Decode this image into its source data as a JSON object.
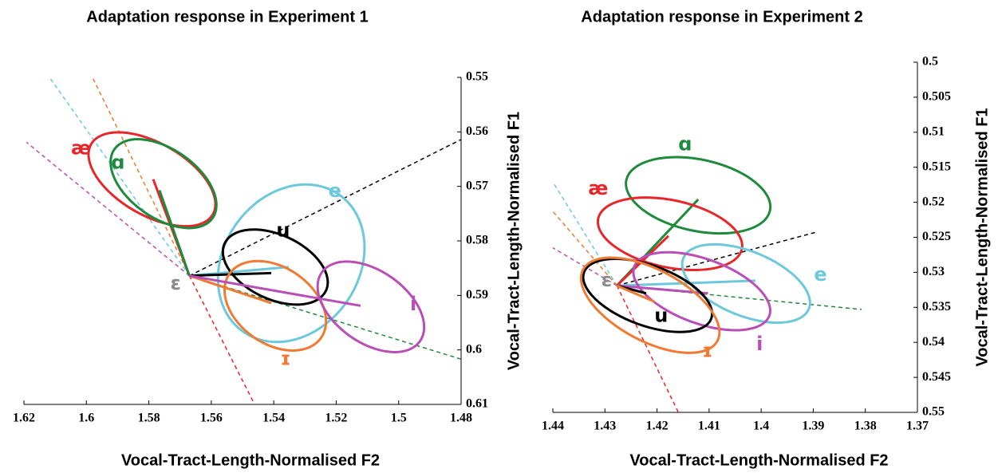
{
  "chart_data": [
    {
      "type": "ellipse",
      "title": "Adaptation response in Experiment 1",
      "x_label": "Vocal-Tract-Length-Normalised F2",
      "y_label": "Vocal-Tract-Length-Normalised F1",
      "xlim": [
        1.62,
        1.48
      ],
      "xticks": [
        1.62,
        1.6,
        1.58,
        1.56,
        1.54,
        1.52,
        1.5,
        1.48
      ],
      "ylim": [
        0.61,
        0.55
      ],
      "yticks": [
        0.55,
        0.56,
        0.57,
        0.58,
        0.59,
        0.6,
        0.61
      ],
      "origin": [
        1.567,
        0.5864
      ],
      "vowels": [
        {
          "name": "æ",
          "color": "#e8262a",
          "x": 1.6017,
          "y": 0.5631,
          "ellipse": {
            "cx": 1.579,
            "cy": 0.5687,
            "rx": 0.0225,
            "ry": 0.0066,
            "angle": 30
          },
          "vector": [
            1.5786,
            0.5687
          ],
          "dashed": [
            1.5464,
            0.6097
          ]
        },
        {
          "name": "ɑ",
          "color": "#1e8a3c",
          "x": 1.5899,
          "y": 0.5657,
          "ellipse": {
            "cx": 1.5753,
            "cy": 0.5695,
            "rx": 0.0192,
            "ry": 0.0063,
            "angle": 35
          },
          "vector": [
            1.5766,
            0.5707
          ],
          "dashed": [
            1.48,
            0.6017
          ]
        },
        {
          "name": "e",
          "color": "#6cc9dc",
          "x": 1.5204,
          "y": 0.5709,
          "ellipse": {
            "cx": 1.5344,
            "cy": 0.5841,
            "rx": 0.0268,
            "ry": 0.0124,
            "angle": -55
          },
          "vector": [
            1.5352,
            0.5848
          ],
          "dashed": [
            1.6118,
            0.55
          ]
        },
        {
          "name": "u",
          "color": "#000000",
          "x": 1.537,
          "y": 0.5782,
          "ellipse": {
            "cx": 1.5395,
            "cy": 0.5848,
            "rx": 0.0179,
            "ry": 0.0059,
            "angle": 25
          },
          "vector": [
            1.5408,
            0.5859
          ],
          "dashed": [
            1.48,
            0.5614
          ]
        },
        {
          "name": "ɪ",
          "color": "#f07a32",
          "x": 1.5362,
          "y": 0.6017,
          "ellipse": {
            "cx": 1.5395,
            "cy": 0.5919,
            "rx": 0.0179,
            "ry": 0.007,
            "angle": 35
          },
          "vector": [
            1.5408,
            0.5914
          ],
          "dashed": [
            1.5983,
            0.5497
          ]
        },
        {
          "name": "i",
          "color": "#b94fb6",
          "x": 1.4953,
          "y": 0.5917,
          "ellipse": {
            "cx": 1.5089,
            "cy": 0.5921,
            "rx": 0.0192,
            "ry": 0.0066,
            "angle": 35
          },
          "vector": [
            1.5122,
            0.5919
          ],
          "dashed": [
            1.6192,
            0.5619
          ]
        },
        {
          "name": "ɛ",
          "color": "#8a8a8a",
          "x": 1.5714,
          "y": 0.5879
        }
      ]
    },
    {
      "type": "ellipse",
      "title": "Adaptation response in Experiment 2",
      "x_label": "Vocal-Tract-Length-Normalised F2",
      "y_label": "Vocal-Tract-Length-Normalised F1",
      "xlim": [
        1.44,
        1.37
      ],
      "xticks": [
        1.44,
        1.43,
        1.42,
        1.41,
        1.4,
        1.39,
        1.38,
        1.37
      ],
      "ylim": [
        0.55,
        0.5
      ],
      "yticks": [
        0.5,
        0.505,
        0.51,
        0.515,
        0.52,
        0.525,
        0.53,
        0.535,
        0.54,
        0.545,
        0.55
      ],
      "origin": [
        1.4277,
        0.5319
      ],
      "vowels": [
        {
          "name": "ɑ",
          "color": "#1e8a3c",
          "x": 1.4146,
          "y": 0.5118,
          "ellipse": {
            "cx": 1.4121,
            "cy": 0.519,
            "rx": 0.0141,
            "ry": 0.0051,
            "angle": 12
          },
          "vector": [
            1.4121,
            0.5196
          ],
          "dashed": [
            1.3807,
            0.5353
          ]
        },
        {
          "name": "æ",
          "color": "#e8262a",
          "x": 1.4313,
          "y": 0.5181,
          "ellipse": {
            "cx": 1.4175,
            "cy": 0.5245,
            "rx": 0.0141,
            "ry": 0.0048,
            "angle": 12
          },
          "vector": [
            1.4178,
            0.5248
          ],
          "dashed": [
            1.4159,
            0.55
          ]
        },
        {
          "name": "e",
          "color": "#6cc9dc",
          "x": 1.3886,
          "y": 0.5304,
          "ellipse": {
            "cx": 1.4029,
            "cy": 0.5316,
            "rx": 0.013,
            "ry": 0.0046,
            "angle": 22
          },
          "vector": [
            1.4011,
            0.5312
          ],
          "dashed": [
            1.44,
            0.5171
          ]
        },
        {
          "name": "i",
          "color": "#b94fb6",
          "x": 1.4003,
          "y": 0.5403,
          "ellipse": {
            "cx": 1.4114,
            "cy": 0.5327,
            "rx": 0.0138,
            "ry": 0.0046,
            "angle": 20
          },
          "vector": [
            1.4102,
            0.533
          ],
          "dashed": [
            1.44,
            0.5265
          ]
        },
        {
          "name": "u",
          "color": "#000000",
          "x": 1.4192,
          "y": 0.5363,
          "ellipse": {
            "cx": 1.4218,
            "cy": 0.5333,
            "rx": 0.013,
            "ry": 0.0043,
            "angle": 20
          },
          "vector": [
            1.4221,
            0.533
          ],
          "dashed": [
            1.3891,
            0.5242
          ]
        },
        {
          "name": "ɪ",
          "color": "#f07a32",
          "x": 1.4103,
          "y": 0.5413,
          "ellipse": {
            "cx": 1.4213,
            "cy": 0.5347,
            "rx": 0.0146,
            "ry": 0.0051,
            "angle": 28
          },
          "vector": [
            1.4205,
            0.5342
          ],
          "dashed": [
            1.44,
            0.5213
          ]
        },
        {
          "name": "ɛ",
          "color": "#8a8a8a",
          "x": 1.4297,
          "y": 0.5312
        }
      ]
    }
  ]
}
